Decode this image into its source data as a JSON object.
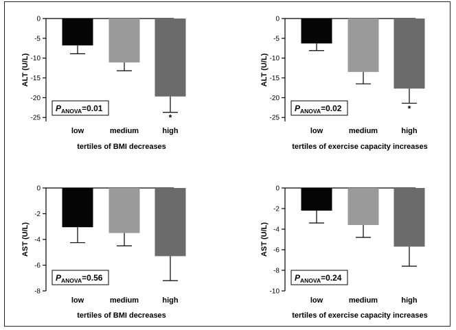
{
  "chart_data": [
    {
      "type": "bar",
      "categories": [
        "low",
        "medium",
        "high"
      ],
      "values": [
        -6.8,
        -11.1,
        -19.7
      ],
      "errors": [
        2.1,
        2.1,
        4.0
      ],
      "colors": [
        "#050505",
        "#9a9a9a",
        "#6b6b6b"
      ],
      "significance": [
        "",
        "",
        "*"
      ],
      "ylabel": "ALT (U/L)",
      "xlabel": "tertiles of BMI decreases",
      "ylim": [
        -26,
        0
      ],
      "yticks": [
        0,
        -5,
        -10,
        -15,
        -20,
        -25
      ],
      "annotation": {
        "p": "P",
        "sub": "ANOVA",
        "value": "=0.01"
      }
    },
    {
      "type": "bar",
      "categories": [
        "low",
        "medium",
        "high"
      ],
      "values": [
        -6.3,
        -13.5,
        -17.7
      ],
      "errors": [
        1.8,
        3.0,
        3.7
      ],
      "colors": [
        "#050505",
        "#9a9a9a",
        "#6b6b6b"
      ],
      "significance": [
        "",
        "",
        "*"
      ],
      "ylabel": "ALT (U/L)",
      "xlabel": "tertiles of exercise capacity increases",
      "ylim": [
        -26,
        0
      ],
      "yticks": [
        0,
        -5,
        -10,
        -15,
        -20,
        -25
      ],
      "annotation": {
        "p": "P",
        "sub": "ANOVA",
        "value": "=0.02"
      }
    },
    {
      "type": "bar",
      "categories": [
        "low",
        "medium",
        "high"
      ],
      "values": [
        -3.05,
        -3.5,
        -5.3
      ],
      "errors": [
        1.2,
        1.0,
        1.9
      ],
      "colors": [
        "#050505",
        "#9a9a9a",
        "#6b6b6b"
      ],
      "significance": [
        "",
        "",
        ""
      ],
      "ylabel": "AST (U/L)",
      "xlabel": "tertiles of BMI decreases",
      "ylim": [
        -8,
        0
      ],
      "yticks": [
        0,
        -2,
        -4,
        -6,
        -8
      ],
      "annotation": {
        "p": "P",
        "sub": "ANOVA",
        "value": "=0.56"
      }
    },
    {
      "type": "bar",
      "categories": [
        "low",
        "medium",
        "high"
      ],
      "values": [
        -2.2,
        -3.6,
        -5.7
      ],
      "errors": [
        1.2,
        1.2,
        1.9
      ],
      "colors": [
        "#050505",
        "#9a9a9a",
        "#6b6b6b"
      ],
      "significance": [
        "",
        "",
        ""
      ],
      "ylabel": "AST (U/L)",
      "xlabel": "tertiles of exercise capacity increases",
      "ylim": [
        -10,
        0
      ],
      "yticks": [
        0,
        -2,
        -4,
        -6,
        -8,
        -10
      ],
      "annotation": {
        "p": "P",
        "sub": "ANOVA",
        "value": "=0.24"
      }
    }
  ]
}
